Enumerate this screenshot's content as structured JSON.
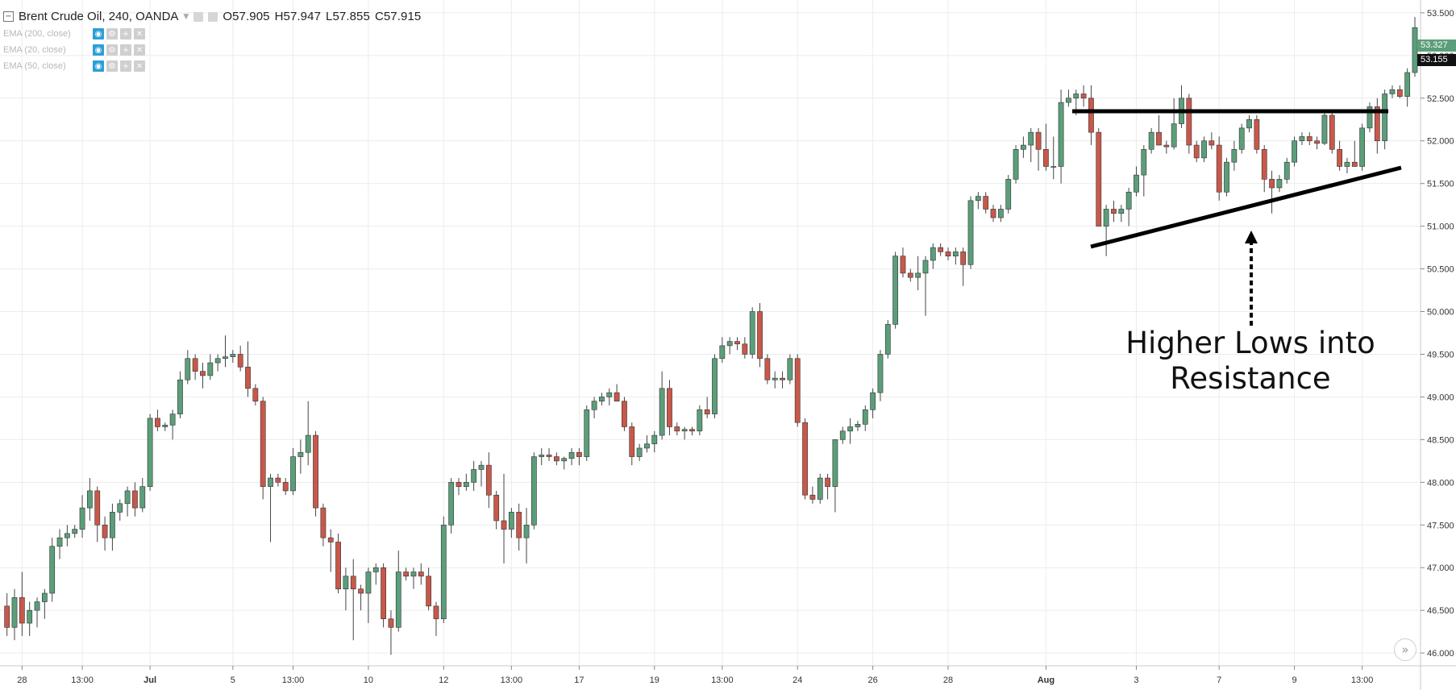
{
  "legend": {
    "collapse_icon": "minus-box-icon",
    "title": "Brent Crude Oil, 240, OANDA",
    "open": "O57.905",
    "high": "H57.947",
    "low": "L57.855",
    "close": "C57.915"
  },
  "indicators": [
    {
      "label": "EMA (200, close)"
    },
    {
      "label": "EMA (20, close)"
    },
    {
      "label": "EMA (50, close)"
    }
  ],
  "price_tags": {
    "upper": "53.327",
    "lower": "53.155"
  },
  "annotation": {
    "line1": "Higher Lows into",
    "line2": "Resistance"
  },
  "colors": {
    "up": "#5b9e7a",
    "down": "#c8584a",
    "wick": "#444444",
    "grid": "#ececec",
    "tag_green": "#5b9e7a",
    "tag_black": "#111111"
  },
  "chart_data": {
    "type": "candlestick",
    "symbol": "Brent Crude Oil",
    "interval": "240",
    "source": "OANDA",
    "ylim": [
      45.85,
      53.65
    ],
    "yticks": [
      "46.000",
      "46.500",
      "47.000",
      "47.500",
      "48.000",
      "48.500",
      "49.000",
      "49.500",
      "50.000",
      "50.500",
      "51.000",
      "51.500",
      "52.000",
      "52.500",
      "53.000",
      "53.500"
    ],
    "x_labels": [
      {
        "label": "28",
        "index": 2
      },
      {
        "label": "13:00",
        "index": 10
      },
      {
        "label": "Jul",
        "index": 19
      },
      {
        "label": "5",
        "index": 30
      },
      {
        "label": "13:00",
        "index": 38
      },
      {
        "label": "10",
        "index": 48
      },
      {
        "label": "12",
        "index": 58
      },
      {
        "label": "13:00",
        "index": 67
      },
      {
        "label": "17",
        "index": 76
      },
      {
        "label": "19",
        "index": 86
      },
      {
        "label": "13:00",
        "index": 95
      },
      {
        "label": "24",
        "index": 105
      },
      {
        "label": "26",
        "index": 115
      },
      {
        "label": "28",
        "index": 125
      },
      {
        "label": "Aug",
        "index": 138
      },
      {
        "label": "3",
        "index": 150
      },
      {
        "label": "7",
        "index": 161
      },
      {
        "label": "9",
        "index": 171
      },
      {
        "label": "13:00",
        "index": 180
      }
    ],
    "ohlc": [
      [
        46.55,
        46.7,
        46.2,
        46.3
      ],
      [
        46.3,
        46.75,
        46.15,
        46.65
      ],
      [
        46.65,
        46.95,
        46.2,
        46.35
      ],
      [
        46.35,
        46.6,
        46.2,
        46.5
      ],
      [
        46.5,
        46.65,
        46.3,
        46.6
      ],
      [
        46.6,
        46.75,
        46.4,
        46.7
      ],
      [
        46.7,
        47.35,
        46.6,
        47.25
      ],
      [
        47.25,
        47.45,
        47.1,
        47.35
      ],
      [
        47.35,
        47.5,
        47.25,
        47.4
      ],
      [
        47.4,
        47.5,
        47.35,
        47.45
      ],
      [
        47.45,
        47.85,
        47.35,
        47.7
      ],
      [
        47.7,
        48.05,
        47.55,
        47.9
      ],
      [
        47.9,
        47.95,
        47.3,
        47.5
      ],
      [
        47.5,
        47.6,
        47.2,
        47.35
      ],
      [
        47.35,
        47.75,
        47.2,
        47.65
      ],
      [
        47.65,
        47.8,
        47.55,
        47.75
      ],
      [
        47.75,
        47.95,
        47.6,
        47.9
      ],
      [
        47.9,
        48.0,
        47.6,
        47.7
      ],
      [
        47.7,
        48.05,
        47.65,
        47.95
      ],
      [
        47.95,
        48.8,
        47.9,
        48.75
      ],
      [
        48.75,
        48.85,
        48.6,
        48.65
      ],
      [
        48.65,
        48.7,
        48.6,
        48.67
      ],
      [
        48.67,
        48.85,
        48.5,
        48.8
      ],
      [
        48.8,
        49.3,
        48.75,
        49.2
      ],
      [
        49.2,
        49.55,
        49.15,
        49.45
      ],
      [
        49.45,
        49.5,
        49.2,
        49.3
      ],
      [
        49.3,
        49.4,
        49.1,
        49.25
      ],
      [
        49.25,
        49.5,
        49.2,
        49.4
      ],
      [
        49.4,
        49.5,
        49.3,
        49.45
      ],
      [
        49.45,
        49.72,
        49.35,
        49.47
      ],
      [
        49.47,
        49.55,
        49.4,
        49.5
      ],
      [
        49.5,
        49.6,
        49.3,
        49.35
      ],
      [
        49.35,
        49.65,
        49.0,
        49.1
      ],
      [
        49.1,
        49.15,
        48.9,
        48.95
      ],
      [
        48.95,
        49.0,
        47.8,
        47.95
      ],
      [
        47.95,
        48.1,
        47.3,
        48.05
      ],
      [
        48.05,
        48.1,
        47.95,
        48.0
      ],
      [
        48.0,
        48.05,
        47.85,
        47.9
      ],
      [
        47.9,
        48.4,
        47.85,
        48.3
      ],
      [
        48.3,
        48.5,
        48.1,
        48.35
      ],
      [
        48.35,
        48.95,
        48.2,
        48.55
      ],
      [
        48.55,
        48.6,
        47.6,
        47.7
      ],
      [
        47.7,
        47.75,
        47.25,
        47.35
      ],
      [
        47.35,
        47.45,
        46.95,
        47.3
      ],
      [
        47.3,
        47.4,
        46.7,
        46.75
      ],
      [
        46.75,
        47.0,
        46.5,
        46.9
      ],
      [
        46.9,
        47.1,
        46.15,
        46.75
      ],
      [
        46.75,
        46.8,
        46.5,
        46.7
      ],
      [
        46.7,
        47.0,
        46.35,
        46.95
      ],
      [
        46.95,
        47.05,
        46.8,
        47.0
      ],
      [
        47.0,
        47.05,
        46.3,
        46.4
      ],
      [
        46.4,
        46.5,
        45.98,
        46.3
      ],
      [
        46.3,
        47.2,
        46.25,
        46.95
      ],
      [
        46.95,
        47.0,
        46.85,
        46.9
      ],
      [
        46.9,
        47.0,
        46.75,
        46.95
      ],
      [
        46.95,
        47.05,
        46.8,
        46.9
      ],
      [
        46.9,
        47.0,
        46.5,
        46.55
      ],
      [
        46.55,
        46.6,
        46.2,
        46.4
      ],
      [
        46.4,
        47.6,
        46.35,
        47.5
      ],
      [
        47.5,
        48.05,
        47.4,
        48.0
      ],
      [
        48.0,
        48.05,
        47.85,
        47.95
      ],
      [
        47.95,
        48.1,
        47.9,
        48.0
      ],
      [
        48.0,
        48.25,
        47.9,
        48.15
      ],
      [
        48.15,
        48.25,
        47.95,
        48.2
      ],
      [
        48.2,
        48.35,
        47.7,
        47.85
      ],
      [
        47.85,
        47.9,
        47.45,
        47.55
      ],
      [
        47.55,
        48.1,
        47.05,
        47.45
      ],
      [
        47.45,
        47.7,
        47.35,
        47.65
      ],
      [
        47.65,
        47.75,
        47.2,
        47.35
      ],
      [
        47.35,
        47.7,
        47.05,
        47.5
      ],
      [
        47.5,
        48.35,
        47.45,
        48.3
      ],
      [
        48.3,
        48.4,
        48.2,
        48.32
      ],
      [
        48.32,
        48.4,
        48.25,
        48.3
      ],
      [
        48.3,
        48.35,
        48.2,
        48.25
      ],
      [
        48.25,
        48.3,
        48.15,
        48.28
      ],
      [
        48.28,
        48.4,
        48.2,
        48.35
      ],
      [
        48.35,
        48.4,
        48.2,
        48.3
      ],
      [
        48.3,
        48.9,
        48.25,
        48.85
      ],
      [
        48.85,
        49.0,
        48.75,
        48.95
      ],
      [
        48.95,
        49.05,
        48.9,
        49.0
      ],
      [
        49.0,
        49.1,
        48.9,
        49.05
      ],
      [
        49.05,
        49.15,
        48.95,
        48.95
      ],
      [
        48.95,
        49.0,
        48.6,
        48.65
      ],
      [
        48.65,
        48.7,
        48.2,
        48.3
      ],
      [
        48.3,
        48.45,
        48.25,
        48.4
      ],
      [
        48.4,
        48.55,
        48.35,
        48.45
      ],
      [
        48.45,
        48.6,
        48.35,
        48.55
      ],
      [
        48.55,
        49.3,
        48.5,
        49.1
      ],
      [
        49.1,
        49.2,
        48.55,
        48.65
      ],
      [
        48.65,
        48.7,
        48.55,
        48.6
      ],
      [
        48.6,
        48.65,
        48.5,
        48.62
      ],
      [
        48.62,
        48.65,
        48.55,
        48.6
      ],
      [
        48.6,
        48.9,
        48.55,
        48.85
      ],
      [
        48.85,
        49.0,
        48.75,
        48.8
      ],
      [
        48.8,
        49.5,
        48.75,
        49.45
      ],
      [
        49.45,
        49.7,
        49.4,
        49.6
      ],
      [
        49.6,
        49.7,
        49.5,
        49.65
      ],
      [
        49.65,
        49.7,
        49.55,
        49.62
      ],
      [
        49.62,
        49.7,
        49.45,
        49.5
      ],
      [
        49.5,
        50.05,
        49.45,
        50.0
      ],
      [
        50.0,
        50.1,
        49.35,
        49.45
      ],
      [
        49.45,
        49.5,
        49.15,
        49.2
      ],
      [
        49.2,
        49.3,
        49.1,
        49.22
      ],
      [
        49.22,
        49.3,
        49.1,
        49.2
      ],
      [
        49.2,
        49.5,
        49.15,
        49.45
      ],
      [
        49.45,
        49.5,
        48.65,
        48.7
      ],
      [
        48.7,
        48.75,
        47.8,
        47.85
      ],
      [
        47.85,
        47.95,
        47.75,
        47.8
      ],
      [
        47.8,
        48.1,
        47.75,
        48.05
      ],
      [
        48.05,
        48.1,
        47.8,
        47.95
      ],
      [
        47.95,
        48.5,
        47.65,
        48.5
      ],
      [
        48.5,
        48.65,
        48.45,
        48.6
      ],
      [
        48.6,
        48.75,
        48.45,
        48.65
      ],
      [
        48.65,
        48.72,
        48.6,
        48.68
      ],
      [
        48.68,
        48.9,
        48.6,
        48.85
      ],
      [
        48.85,
        49.1,
        48.75,
        49.05
      ],
      [
        49.05,
        49.55,
        48.95,
        49.5
      ],
      [
        49.5,
        49.9,
        49.45,
        49.85
      ],
      [
        49.85,
        50.7,
        49.8,
        50.65
      ],
      [
        50.65,
        50.75,
        50.4,
        50.45
      ],
      [
        50.45,
        50.5,
        50.35,
        50.4
      ],
      [
        50.4,
        50.65,
        50.25,
        50.45
      ],
      [
        50.45,
        50.65,
        49.95,
        50.6
      ],
      [
        50.6,
        50.8,
        50.5,
        50.75
      ],
      [
        50.75,
        50.8,
        50.65,
        50.7
      ],
      [
        50.7,
        50.75,
        50.6,
        50.65
      ],
      [
        50.65,
        50.75,
        50.55,
        50.7
      ],
      [
        50.7,
        50.75,
        50.3,
        50.55
      ],
      [
        50.55,
        51.35,
        50.5,
        51.3
      ],
      [
        51.3,
        51.4,
        51.2,
        51.35
      ],
      [
        51.35,
        51.4,
        51.15,
        51.2
      ],
      [
        51.2,
        51.25,
        51.05,
        51.1
      ],
      [
        51.1,
        51.25,
        51.05,
        51.2
      ],
      [
        51.2,
        51.6,
        51.15,
        51.55
      ],
      [
        51.55,
        51.95,
        51.5,
        51.9
      ],
      [
        51.9,
        52.05,
        51.8,
        51.95
      ],
      [
        51.95,
        52.15,
        51.75,
        52.1
      ],
      [
        52.1,
        52.15,
        51.65,
        51.9
      ],
      [
        51.9,
        52.2,
        51.65,
        51.7
      ],
      [
        51.7,
        52.05,
        51.55,
        51.7
      ],
      [
        51.7,
        52.6,
        51.5,
        52.45
      ],
      [
        52.45,
        52.6,
        52.4,
        52.5
      ],
      [
        52.5,
        52.6,
        52.3,
        52.55
      ],
      [
        52.55,
        52.65,
        52.4,
        52.5
      ],
      [
        52.5,
        52.65,
        51.95,
        52.1
      ],
      [
        52.1,
        52.15,
        51.0,
        51.0
      ],
      [
        51.0,
        51.25,
        50.65,
        51.2
      ],
      [
        51.2,
        51.3,
        51.05,
        51.15
      ],
      [
        51.15,
        51.25,
        51.05,
        51.2
      ],
      [
        51.2,
        51.45,
        51.0,
        51.4
      ],
      [
        51.4,
        51.7,
        51.35,
        51.6
      ],
      [
        51.6,
        51.95,
        51.35,
        51.9
      ],
      [
        51.9,
        52.15,
        51.85,
        52.1
      ],
      [
        52.1,
        52.3,
        51.95,
        51.95
      ],
      [
        51.95,
        52.0,
        51.85,
        51.93
      ],
      [
        51.93,
        52.5,
        51.9,
        52.2
      ],
      [
        52.2,
        52.65,
        52.15,
        52.5
      ],
      [
        52.5,
        52.55,
        51.85,
        51.95
      ],
      [
        51.95,
        52.0,
        51.75,
        51.8
      ],
      [
        51.8,
        52.05,
        51.75,
        52.0
      ],
      [
        52.0,
        52.1,
        51.9,
        51.95
      ],
      [
        51.95,
        52.05,
        51.3,
        51.4
      ],
      [
        51.4,
        51.8,
        51.35,
        51.75
      ],
      [
        51.75,
        52.0,
        51.65,
        51.9
      ],
      [
        51.9,
        52.2,
        51.85,
        52.15
      ],
      [
        52.15,
        52.3,
        52.1,
        52.25
      ],
      [
        52.25,
        52.3,
        51.85,
        51.9
      ],
      [
        51.9,
        51.95,
        51.4,
        51.55
      ],
      [
        51.55,
        51.65,
        51.15,
        51.45
      ],
      [
        51.45,
        51.6,
        51.4,
        51.55
      ],
      [
        51.55,
        51.8,
        51.5,
        51.75
      ],
      [
        51.75,
        52.05,
        51.7,
        52.0
      ],
      [
        52.0,
        52.1,
        51.95,
        52.05
      ],
      [
        52.05,
        52.1,
        51.95,
        52.0
      ],
      [
        52.0,
        52.05,
        51.9,
        51.97
      ],
      [
        51.97,
        52.35,
        51.95,
        52.3
      ],
      [
        52.3,
        52.35,
        51.85,
        51.9
      ],
      [
        51.9,
        52.0,
        51.65,
        51.7
      ],
      [
        51.7,
        51.8,
        51.62,
        51.75
      ],
      [
        51.75,
        52.0,
        51.7,
        51.7
      ],
      [
        51.7,
        52.2,
        51.65,
        52.15
      ],
      [
        52.15,
        52.45,
        52.1,
        52.4
      ],
      [
        52.4,
        52.5,
        51.85,
        52.0
      ],
      [
        52.0,
        52.6,
        51.9,
        52.55
      ],
      [
        52.55,
        52.65,
        52.5,
        52.6
      ],
      [
        52.6,
        52.65,
        52.5,
        52.52
      ],
      [
        52.52,
        52.85,
        52.4,
        52.8
      ],
      [
        52.8,
        53.45,
        52.75,
        53.327
      ]
    ]
  }
}
